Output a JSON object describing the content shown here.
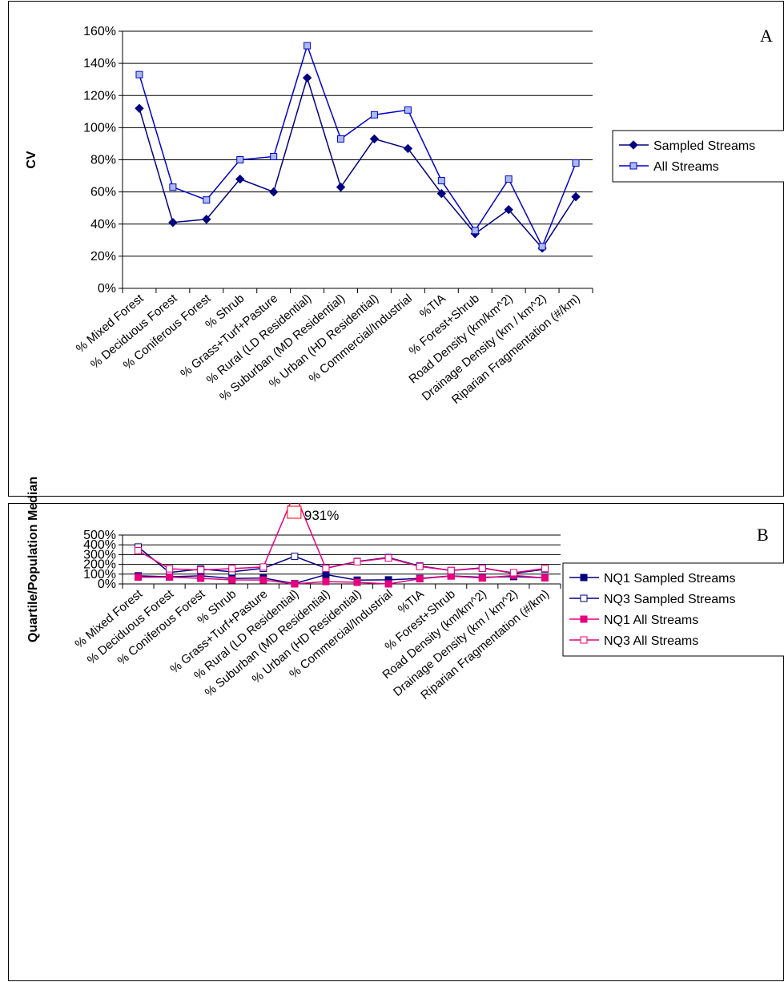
{
  "chart_data": [
    {
      "panel": "A",
      "type": "line",
      "ylabel": "CV",
      "ylim": [
        0,
        160
      ],
      "y_ticks": [
        "0%",
        "20%",
        "40%",
        "60%",
        "80%",
        "100%",
        "120%",
        "140%",
        "160%"
      ],
      "grid": true,
      "legend_position": "right",
      "categories": [
        "% Mixed Forest",
        "% Deciduous Forest",
        "% Coniferous Forest",
        "% Shrub",
        "% Grass+Turf+Pasture",
        "% Rural (LD Residential)",
        "% Suburban (MD Residential)",
        "% Urban (HD Residential)",
        "% Commercial/Industrial",
        "%TIA",
        "% Forest+Shrub",
        "Road Density (km/km^2)",
        "Drainage Density (km / km^2)",
        "Riparian Fragmentation (#/km)"
      ],
      "series": [
        {
          "name": "Sampled Streams",
          "color": "#000080",
          "marker": "diamond-filled",
          "values": [
            112,
            41,
            43,
            68,
            60,
            131,
            63,
            93,
            87,
            59,
            34,
            49,
            25,
            57
          ]
        },
        {
          "name": "All Streams",
          "color": "#0000cc",
          "marker": "square-lightfill",
          "values": [
            133,
            63,
            55,
            80,
            82,
            151,
            93,
            108,
            111,
            67,
            36,
            68,
            26,
            78
          ]
        }
      ]
    },
    {
      "panel": "B",
      "type": "line",
      "ylabel": "Quartile/Population Median",
      "ylim": [
        0,
        500
      ],
      "y_ticks": [
        "0%",
        "100%",
        "200%",
        "300%",
        "400%",
        "500%"
      ],
      "grid": true,
      "legend_position": "right",
      "annotation": "931%",
      "categories": [
        "% Mixed Forest",
        "% Deciduous Forest",
        "% Coniferous Forest",
        "% Shrub",
        "% Grass+Turf+Pasture",
        "% Rural (LD Residential)",
        "% Suburban (MD Residential)",
        "% Urban (HD Residential)",
        "% Commercial/Industrial",
        "%TIA",
        "% Forest+Shrub",
        "Road Density (km/km^2)",
        "Drainage Density (km / km^2)",
        "Riparian Fragmentation (#/km)"
      ],
      "series": [
        {
          "name": "NQ1 Sampled Streams",
          "color": "#000080",
          "marker": "square-filled",
          "values": [
            83,
            73,
            83,
            55,
            60,
            3,
            95,
            39,
            42,
            56,
            82,
            68,
            75,
            62
          ]
        },
        {
          "name": "NQ3 Sampled Streams",
          "color": "#000080",
          "marker": "square-open",
          "values": [
            378,
            117,
            152,
            124,
            160,
            282,
            161,
            230,
            270,
            183,
            137,
            165,
            108,
            150
          ]
        },
        {
          "name": "NQ1 All Streams",
          "color": "#e6007e",
          "marker": "square-filled",
          "values": [
            69,
            70,
            57,
            41,
            40,
            0,
            24,
            16,
            0,
            52,
            80,
            60,
            87,
            62
          ]
        },
        {
          "name": "NQ3 All Streams",
          "color": "#e6007e",
          "marker": "square-open",
          "values": [
            340,
            155,
            142,
            157,
            173,
            931,
            160,
            227,
            265,
            178,
            137,
            160,
            115,
            158
          ]
        }
      ]
    }
  ]
}
